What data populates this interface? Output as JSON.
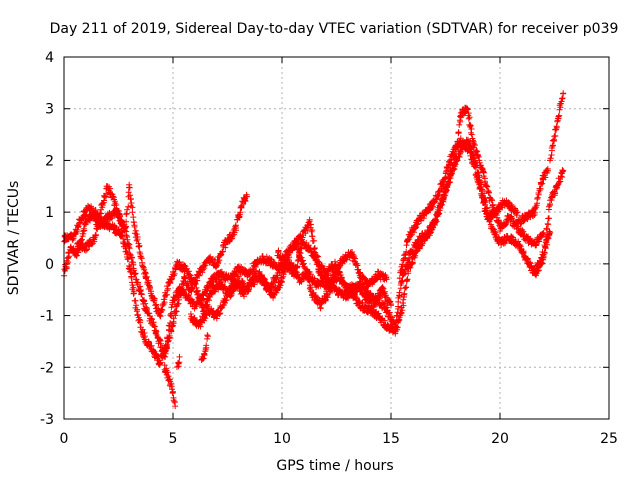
{
  "chart_data": {
    "type": "scatter",
    "title": "Day 211 of 2019, Sidereal Day-to-day VTEC variation (SDTVAR) for receiver p039",
    "xlabel": "GPS time / hours",
    "ylabel": "SDTVAR / TECUs",
    "xlim": [
      0,
      25
    ],
    "ylim": [
      -3,
      4
    ],
    "xticks": [
      0,
      5,
      10,
      15,
      20,
      25
    ],
    "yticks": [
      -3,
      -2,
      -1,
      0,
      1,
      2,
      3,
      4
    ],
    "grid": true,
    "marker": "plus",
    "series": [
      {
        "name": "SDTVAR",
        "color": "#ff0000",
        "curves": [
          [
            [
              0,
              -0.2
            ],
            [
              0.3,
              0.3
            ],
            [
              0.6,
              0.2
            ],
            [
              1.0,
              0.8
            ],
            [
              1.4,
              1.0
            ],
            [
              1.8,
              0.8
            ],
            [
              2.2,
              0.7
            ],
            [
              2.6,
              0.6
            ],
            [
              2.9,
              0.2
            ],
            [
              3.2,
              -0.6
            ],
            [
              3.5,
              -1.2
            ],
            [
              3.8,
              -1.5
            ],
            [
              4.1,
              -1.7
            ],
            [
              4.4,
              -1.9
            ],
            [
              4.7,
              -1.6
            ],
            [
              5.0,
              -0.7
            ],
            [
              5.3,
              -0.5
            ],
            [
              5.6,
              -0.6
            ],
            [
              6.0,
              -0.8
            ],
            [
              6.4,
              -0.6
            ],
            [
              6.8,
              -0.3
            ],
            [
              7.2,
              -0.2
            ],
            [
              7.6,
              -0.3
            ],
            [
              8.0,
              -0.1
            ],
            [
              8.4,
              -0.2
            ],
            [
              8.8,
              0.0
            ],
            [
              9.2,
              0.1
            ],
            [
              9.6,
              0.0
            ],
            [
              10.0,
              -0.1
            ],
            [
              10.4,
              0.0
            ],
            [
              10.8,
              -0.3
            ],
            [
              11.2,
              -0.2
            ],
            [
              11.6,
              -0.4
            ],
            [
              12.0,
              -0.3
            ],
            [
              12.4,
              -0.5
            ],
            [
              12.8,
              -0.6
            ],
            [
              13.2,
              -0.6
            ],
            [
              13.6,
              -0.8
            ],
            [
              14.0,
              -0.9
            ],
            [
              14.4,
              -1.0
            ],
            [
              14.8,
              -1.2
            ],
            [
              15.2,
              -1.3
            ],
            [
              15.5,
              -0.9
            ],
            [
              15.8,
              -0.1
            ],
            [
              16.2,
              0.3
            ],
            [
              16.6,
              0.5
            ],
            [
              17.0,
              0.8
            ],
            [
              17.4,
              1.3
            ],
            [
              17.8,
              1.8
            ],
            [
              18.2,
              2.2
            ],
            [
              18.5,
              2.4
            ],
            [
              18.8,
              2.1
            ],
            [
              19.2,
              1.4
            ],
            [
              19.6,
              0.7
            ],
            [
              20.0,
              0.4
            ],
            [
              20.4,
              0.5
            ],
            [
              20.8,
              0.4
            ],
            [
              21.2,
              0.1
            ],
            [
              21.6,
              -0.2
            ],
            [
              22.0,
              0.1
            ],
            [
              22.3,
              1.2
            ],
            [
              22.6,
              1.5
            ],
            [
              22.9,
              1.8
            ]
          ],
          [
            [
              0,
              0.5
            ],
            [
              0.4,
              0.5
            ],
            [
              0.8,
              0.9
            ],
            [
              1.2,
              1.1
            ],
            [
              1.6,
              0.7
            ],
            [
              2.0,
              0.9
            ],
            [
              2.4,
              1.0
            ],
            [
              2.8,
              0.7
            ],
            [
              3.1,
              0.1
            ],
            [
              3.4,
              -0.4
            ],
            [
              3.7,
              -0.8
            ],
            [
              4.0,
              -1.1
            ],
            [
              4.3,
              -1.4
            ],
            [
              4.6,
              -1.8
            ],
            [
              4.9,
              -1.3
            ],
            [
              5.2,
              -0.8
            ],
            [
              5.5,
              -0.3
            ],
            [
              5.8,
              -0.5
            ],
            [
              6.2,
              -0.2
            ],
            [
              6.6,
              0.1
            ],
            [
              7.0,
              0.0
            ],
            [
              7.4,
              0.4
            ],
            [
              7.8,
              0.6
            ],
            [
              8.2,
              1.2
            ],
            [
              8.4,
              1.3
            ]
          ],
          [
            [
              0.6,
              0.4
            ],
            [
              1.0,
              0.3
            ],
            [
              1.4,
              0.5
            ],
            [
              1.8,
              1.2
            ],
            [
              2.0,
              1.5
            ],
            [
              2.4,
              1.1
            ],
            [
              2.8,
              0.6
            ],
            [
              3.0,
              1.5
            ],
            [
              3.2,
              0.8
            ],
            [
              3.6,
              0.0
            ],
            [
              4.0,
              -0.6
            ],
            [
              4.4,
              -1.0
            ],
            [
              4.8,
              -0.4
            ],
            [
              5.2,
              0.0
            ],
            [
              5.6,
              -0.1
            ],
            [
              6.0,
              -0.4
            ],
            [
              6.4,
              -0.9
            ],
            [
              6.8,
              -0.5
            ],
            [
              7.2,
              -0.4
            ],
            [
              7.6,
              -0.6
            ],
            [
              8.0,
              -0.3
            ],
            [
              8.4,
              -0.5
            ],
            [
              8.8,
              -0.2
            ],
            [
              9.2,
              -0.4
            ],
            [
              9.6,
              -0.6
            ],
            [
              10.0,
              -0.3
            ],
            [
              10.4,
              0.3
            ],
            [
              10.8,
              0.5
            ],
            [
              11.2,
              0.3
            ],
            [
              11.6,
              0.1
            ],
            [
              12.0,
              -0.2
            ],
            [
              12.4,
              0.0
            ],
            [
              12.8,
              -0.4
            ],
            [
              13.2,
              -0.6
            ],
            [
              13.6,
              -0.4
            ],
            [
              14.0,
              -0.6
            ],
            [
              14.4,
              -0.7
            ],
            [
              14.8,
              -0.9
            ],
            [
              15.2,
              -1.2
            ],
            [
              15.5,
              -0.3
            ],
            [
              15.9,
              0.2
            ],
            [
              16.3,
              0.5
            ],
            [
              16.7,
              0.6
            ],
            [
              17.1,
              0.9
            ],
            [
              17.5,
              1.4
            ],
            [
              17.9,
              1.9
            ],
            [
              18.2,
              2.9
            ],
            [
              18.5,
              3.0
            ],
            [
              18.8,
              2.3
            ],
            [
              19.2,
              1.8
            ],
            [
              19.6,
              1.2
            ],
            [
              20.0,
              0.7
            ],
            [
              20.4,
              0.9
            ],
            [
              20.8,
              0.7
            ],
            [
              21.2,
              0.5
            ],
            [
              21.6,
              0.4
            ],
            [
              22.0,
              0.6
            ]
          ],
          [
            [
              5.8,
              -1.0
            ],
            [
              6.2,
              -1.2
            ],
            [
              6.6,
              -0.9
            ],
            [
              7.0,
              -1.0
            ],
            [
              7.4,
              -0.7
            ],
            [
              7.8,
              -0.3
            ],
            [
              8.2,
              -0.6
            ],
            [
              8.6,
              -0.4
            ],
            [
              9.0,
              -0.2
            ],
            [
              9.4,
              -0.5
            ],
            [
              9.8,
              -0.2
            ],
            [
              10.2,
              0.2
            ],
            [
              10.6,
              0.4
            ],
            [
              11.0,
              0.0
            ],
            [
              11.4,
              -0.6
            ],
            [
              11.8,
              -0.8
            ],
            [
              12.2,
              -0.5
            ],
            [
              12.6,
              -0.2
            ],
            [
              13.0,
              -0.5
            ],
            [
              13.4,
              -0.4
            ],
            [
              13.8,
              -0.6
            ],
            [
              14.2,
              -0.8
            ],
            [
              14.6,
              -0.5
            ],
            [
              15.0,
              -0.8
            ]
          ],
          [
            [
              9.8,
              0.2
            ],
            [
              10.2,
              0.0
            ],
            [
              10.6,
              -0.2
            ],
            [
              11.0,
              0.6
            ],
            [
              11.3,
              0.8
            ],
            [
              11.6,
              0.0
            ],
            [
              12.0,
              -0.5
            ],
            [
              12.4,
              -0.2
            ],
            [
              12.8,
              0.1
            ],
            [
              13.2,
              0.2
            ],
            [
              13.6,
              -0.2
            ],
            [
              14.0,
              -0.4
            ],
            [
              14.4,
              -0.2
            ],
            [
              14.8,
              -0.3
            ]
          ],
          [
            [
              15.4,
              -0.3
            ],
            [
              15.8,
              0.5
            ],
            [
              16.2,
              0.8
            ],
            [
              16.6,
              1.0
            ],
            [
              17.0,
              1.2
            ],
            [
              17.4,
              1.6
            ],
            [
              17.8,
              2.1
            ],
            [
              18.2,
              2.4
            ],
            [
              18.6,
              2.2
            ],
            [
              19.0,
              1.6
            ],
            [
              19.4,
              0.9
            ],
            [
              19.8,
              1.0
            ],
            [
              20.2,
              1.2
            ],
            [
              20.5,
              1.1
            ],
            [
              20.8,
              1.0
            ]
          ],
          [
            [
              20.8,
              0.8
            ],
            [
              21.2,
              0.9
            ],
            [
              21.6,
              1.0
            ],
            [
              21.8,
              1.4
            ],
            [
              22.0,
              1.7
            ],
            [
              22.2,
              1.8
            ]
          ],
          [
            [
              21.6,
              -0.1
            ],
            [
              21.8,
              0.0
            ],
            [
              22.0,
              0.2
            ],
            [
              22.2,
              0.5
            ],
            [
              22.3,
              0.6
            ]
          ],
          [
            [
              22.3,
              2.0
            ],
            [
              22.5,
              2.5
            ],
            [
              22.7,
              2.9
            ],
            [
              22.9,
              3.3
            ]
          ],
          [
            [
              4.6,
              -2.0
            ],
            [
              4.8,
              -2.2
            ],
            [
              5.0,
              -2.5
            ],
            [
              5.1,
              -2.75
            ]
          ],
          [
            [
              5.2,
              -2.0
            ],
            [
              5.3,
              -1.8
            ]
          ],
          [
            [
              6.3,
              -1.9
            ],
            [
              6.5,
              -1.6
            ],
            [
              6.6,
              -1.4
            ]
          ]
        ]
      }
    ]
  }
}
